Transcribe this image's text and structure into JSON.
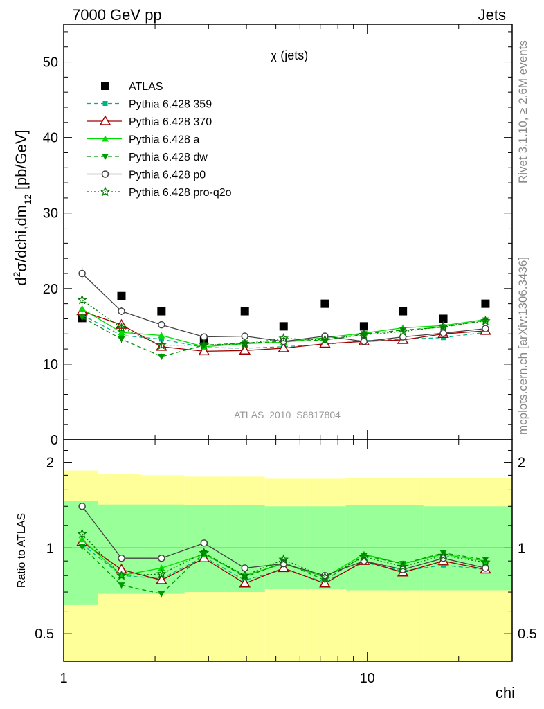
{
  "header": {
    "energy_label": "7000 GeV pp",
    "category_label": "Jets"
  },
  "side_text": {
    "rivet": "Rivet 3.1.10, ≥ 2.6M events",
    "mcplots": "mcplots.cern.ch [arXiv:1306.3436]"
  },
  "chart_data": [
    {
      "type": "scatter",
      "panel": "main",
      "title": "χ (jets)",
      "ylabel": "d²σ/dchi,dm₁₂ [pb/GeV]",
      "xlabel": "chi",
      "analysis_label": "ATLAS_2010_S8817804",
      "x_scale": "log",
      "xlim": [
        1,
        30
      ],
      "ylim": [
        0,
        55
      ],
      "y_ticks": [
        0,
        10,
        20,
        30,
        40,
        50
      ],
      "x_tick_labels": [
        "1",
        "10"
      ],
      "legend_position": "top-left",
      "x": [
        1.15,
        1.55,
        2.1,
        2.9,
        3.95,
        5.3,
        7.25,
        9.75,
        13.1,
        17.8,
        24.5
      ],
      "series": [
        {
          "name": "ATLAS",
          "color": "#000000",
          "marker": "square",
          "line": "none",
          "values": [
            16.1,
            19.0,
            17.0,
            13.1,
            17.0,
            15.0,
            18.0,
            15.0,
            17.0,
            16.0,
            18.0
          ],
          "errors": [
            0.3,
            0.3,
            0.3,
            0.3,
            0.3,
            0.3,
            0.3,
            0.3,
            0.3,
            0.3,
            0.3
          ]
        },
        {
          "name": "Pythia 6.428 359",
          "color": "#00b386",
          "marker": "small-square",
          "line": "dashed",
          "values": [
            16.5,
            13.8,
            13.3,
            12.2,
            12.1,
            12.3,
            12.6,
            13.1,
            13.3,
            13.5,
            14.2
          ],
          "errors": [
            0.5,
            0.4,
            0.3,
            0.2,
            0.2,
            0.2,
            0.2,
            0.2,
            0.2,
            0.2,
            0.2
          ]
        },
        {
          "name": "Pythia 6.428 370",
          "color": "#a00000",
          "marker": "open-triangle",
          "line": "solid",
          "values": [
            17.0,
            15.2,
            12.3,
            11.7,
            11.8,
            12.1,
            12.7,
            13.0,
            13.2,
            14.0,
            14.4
          ],
          "errors": [
            0.5,
            0.4,
            0.3,
            0.2,
            0.2,
            0.2,
            0.2,
            0.2,
            0.2,
            0.2,
            0.2
          ]
        },
        {
          "name": "Pythia 6.428 a",
          "color": "#00dd00",
          "marker": "triangle",
          "line": "solid",
          "values": [
            17.3,
            14.2,
            13.8,
            12.3,
            12.7,
            12.9,
            13.5,
            14.1,
            14.8,
            15.1,
            15.9
          ],
          "errors": [
            0.5,
            0.4,
            0.3,
            0.2,
            0.2,
            0.2,
            0.2,
            0.2,
            0.2,
            0.2,
            0.2
          ]
        },
        {
          "name": "Pythia 6.428 dw",
          "color": "#009900",
          "marker": "down-triangle",
          "line": "dashed",
          "values": [
            16.2,
            13.3,
            11.0,
            12.5,
            12.8,
            13.0,
            13.2,
            14.0,
            14.5,
            14.9,
            15.8
          ],
          "errors": [
            0.6,
            0.5,
            0.4,
            0.3,
            0.2,
            0.2,
            0.2,
            0.2,
            0.2,
            0.2,
            0.2
          ]
        },
        {
          "name": "Pythia 6.428 p0",
          "color": "#444444",
          "marker": "open-circle",
          "line": "solid",
          "values": [
            22.0,
            17.0,
            15.2,
            13.6,
            13.7,
            13.0,
            13.7,
            13.0,
            13.6,
            14.1,
            14.7
          ],
          "errors": [
            0.8,
            0.5,
            0.4,
            0.3,
            0.2,
            0.2,
            0.2,
            0.2,
            0.2,
            0.2,
            0.2
          ]
        },
        {
          "name": "Pythia 6.428 pro-q2o",
          "color": "#007700",
          "marker": "open-star",
          "line": "dotted",
          "values": [
            18.5,
            14.8,
            12.5,
            12.5,
            12.7,
            13.4,
            13.2,
            13.9,
            14.3,
            15.0,
            15.7
          ],
          "errors": [
            0.6,
            0.4,
            0.3,
            0.2,
            0.2,
            0.2,
            0.2,
            0.2,
            0.2,
            0.2,
            0.2
          ]
        }
      ]
    },
    {
      "type": "scatter",
      "panel": "ratio",
      "ylabel": "Ratio to ATLAS",
      "x_scale": "log",
      "y_scale": "log",
      "xlim": [
        1,
        30
      ],
      "ylim": [
        0.4,
        2.4
      ],
      "y_tick_labels": [
        "0.5",
        "1",
        "2"
      ],
      "x_edges": [
        1.0,
        1.3,
        1.8,
        2.5,
        3.4,
        4.6,
        6.2,
        8.5,
        11.5,
        15.3,
        20.5,
        30.0
      ],
      "band_inner": {
        "color": "#99ff99",
        "low": [
          0.63,
          0.69,
          0.69,
          0.7,
          0.7,
          0.72,
          0.72,
          0.71,
          0.71,
          0.71,
          0.71
        ],
        "high": [
          1.46,
          1.42,
          1.42,
          1.41,
          1.41,
          1.4,
          1.4,
          1.41,
          1.41,
          1.4,
          1.4
        ]
      },
      "band_outer": {
        "color": "#ffff99",
        "low": [
          0.34,
          0.34,
          0.34,
          0.34,
          0.34,
          0.34,
          0.34,
          0.34,
          0.34,
          0.34,
          0.34
        ],
        "high": [
          1.87,
          1.82,
          1.8,
          1.78,
          1.78,
          1.75,
          1.75,
          1.76,
          1.76,
          1.76,
          1.76
        ]
      },
      "series": [
        {
          "name": "Pythia 6.428 359",
          "color": "#00b386",
          "marker": "small-square",
          "line": "dashed",
          "values": [
            1.03,
            0.8,
            0.78,
            0.93,
            0.77,
            0.84,
            0.76,
            0.89,
            0.83,
            0.87,
            0.84
          ]
        },
        {
          "name": "Pythia 6.428 370",
          "color": "#a00000",
          "marker": "open-triangle",
          "line": "solid",
          "values": [
            1.05,
            0.84,
            0.77,
            0.92,
            0.75,
            0.85,
            0.75,
            0.9,
            0.82,
            0.9,
            0.84
          ]
        },
        {
          "name": "Pythia 6.428 a",
          "color": "#00dd00",
          "marker": "triangle",
          "line": "solid",
          "values": [
            1.07,
            0.8,
            0.85,
            0.95,
            0.8,
            0.88,
            0.79,
            0.95,
            0.88,
            0.95,
            0.9
          ]
        },
        {
          "name": "Pythia 6.428 dw",
          "color": "#009900",
          "marker": "down-triangle",
          "line": "dashed",
          "values": [
            1.01,
            0.74,
            0.69,
            0.96,
            0.79,
            0.89,
            0.77,
            0.94,
            0.88,
            0.96,
            0.91
          ]
        },
        {
          "name": "Pythia 6.428 p0",
          "color": "#444444",
          "marker": "open-circle",
          "line": "solid",
          "values": [
            1.4,
            0.92,
            0.92,
            1.04,
            0.85,
            0.88,
            0.8,
            0.9,
            0.84,
            0.92,
            0.85
          ]
        },
        {
          "name": "Pythia 6.428 pro-q2o",
          "color": "#007700",
          "marker": "open-star",
          "line": "dotted",
          "values": [
            1.12,
            0.8,
            0.81,
            0.96,
            0.8,
            0.91,
            0.79,
            0.93,
            0.86,
            0.94,
            0.89
          ]
        }
      ]
    }
  ]
}
